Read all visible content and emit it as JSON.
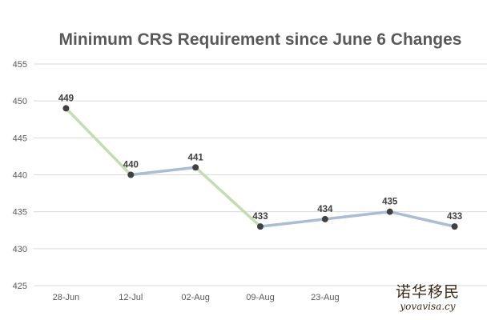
{
  "chart_data": {
    "type": "line",
    "title": "Minimum CRS Requirement since June 6 Changes",
    "categories": [
      "28-Jun",
      "12-Jul",
      "02-Aug",
      "09-Aug",
      "23-Aug",
      "",
      ""
    ],
    "series": [
      {
        "values": [
          449,
          440,
          441,
          433,
          434,
          435,
          433
        ]
      }
    ],
    "data_labels": [
      "449",
      "440",
      "441",
      "433",
      "434",
      "435",
      "433"
    ],
    "y_ticks": [
      "425",
      "430",
      "435",
      "440",
      "445",
      "450",
      "455"
    ],
    "ylim": [
      425,
      455
    ],
    "grid": true,
    "legend": "none",
    "colors": {
      "line_default": "#a9bdd6",
      "line_rise_segment": "#c5dbb0",
      "marker": "#404040",
      "grid": "#d9d9d9"
    },
    "segment_colors": [
      "line_rise_segment",
      "line_default",
      "line_rise_segment",
      "line_default",
      "line_default",
      "line_default"
    ]
  },
  "watermark": {
    "chinese_text": "诺华移民",
    "latin_text": "yovavisa.cy"
  }
}
